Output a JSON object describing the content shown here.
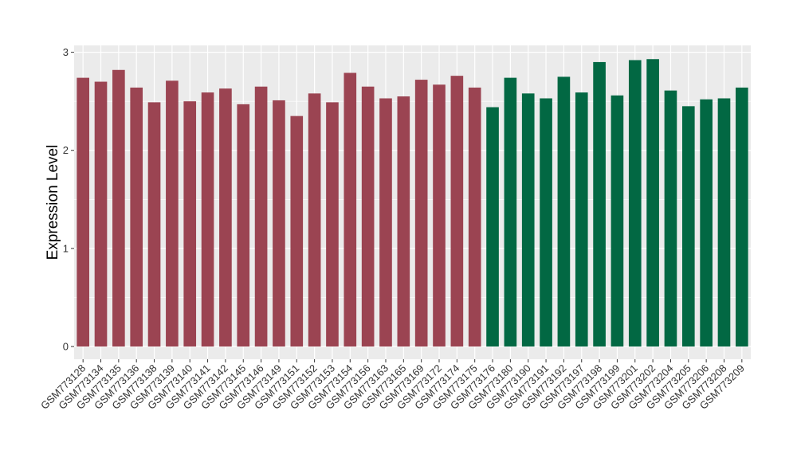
{
  "chart_data": {
    "type": "bar",
    "title": "",
    "xlabel": "",
    "ylabel": "Expression Level",
    "ylim": [
      -0.13,
      3.07
    ],
    "yticks": [
      0,
      1,
      2,
      3
    ],
    "grid": true,
    "legend": "none",
    "colors": {
      "group1": "#9b4452",
      "group2": "#026843",
      "panel": "#ebebeb",
      "grid": "#ffffff"
    },
    "categories": [
      "GSM773128",
      "GSM773134",
      "GSM773135",
      "GSM773136",
      "GSM773138",
      "GSM773139",
      "GSM773140",
      "GSM773141",
      "GSM773142",
      "GSM773145",
      "GSM773146",
      "GSM773149",
      "GSM773151",
      "GSM773152",
      "GSM773153",
      "GSM773154",
      "GSM773156",
      "GSM773163",
      "GSM773165",
      "GSM773169",
      "GSM773172",
      "GSM773174",
      "GSM773175",
      "GSM773176",
      "GSM773180",
      "GSM773190",
      "GSM773191",
      "GSM773192",
      "GSM773197",
      "GSM773198",
      "GSM773199",
      "GSM773201",
      "GSM773202",
      "GSM773204",
      "GSM773205",
      "GSM773206",
      "GSM773208",
      "GSM773209"
    ],
    "values": [
      2.74,
      2.7,
      2.82,
      2.64,
      2.49,
      2.71,
      2.5,
      2.59,
      2.63,
      2.47,
      2.65,
      2.51,
      2.35,
      2.58,
      2.49,
      2.79,
      2.65,
      2.53,
      2.55,
      2.72,
      2.67,
      2.76,
      2.64,
      2.44,
      2.74,
      2.58,
      2.53,
      2.75,
      2.59,
      2.9,
      2.56,
      2.92,
      2.93,
      2.61,
      2.45,
      2.52,
      2.53,
      2.64
    ],
    "groups": [
      1,
      1,
      1,
      1,
      1,
      1,
      1,
      1,
      1,
      1,
      1,
      1,
      1,
      1,
      1,
      1,
      1,
      1,
      1,
      1,
      1,
      1,
      1,
      2,
      2,
      2,
      2,
      2,
      2,
      2,
      2,
      2,
      2,
      2,
      2,
      2,
      2,
      2
    ]
  }
}
